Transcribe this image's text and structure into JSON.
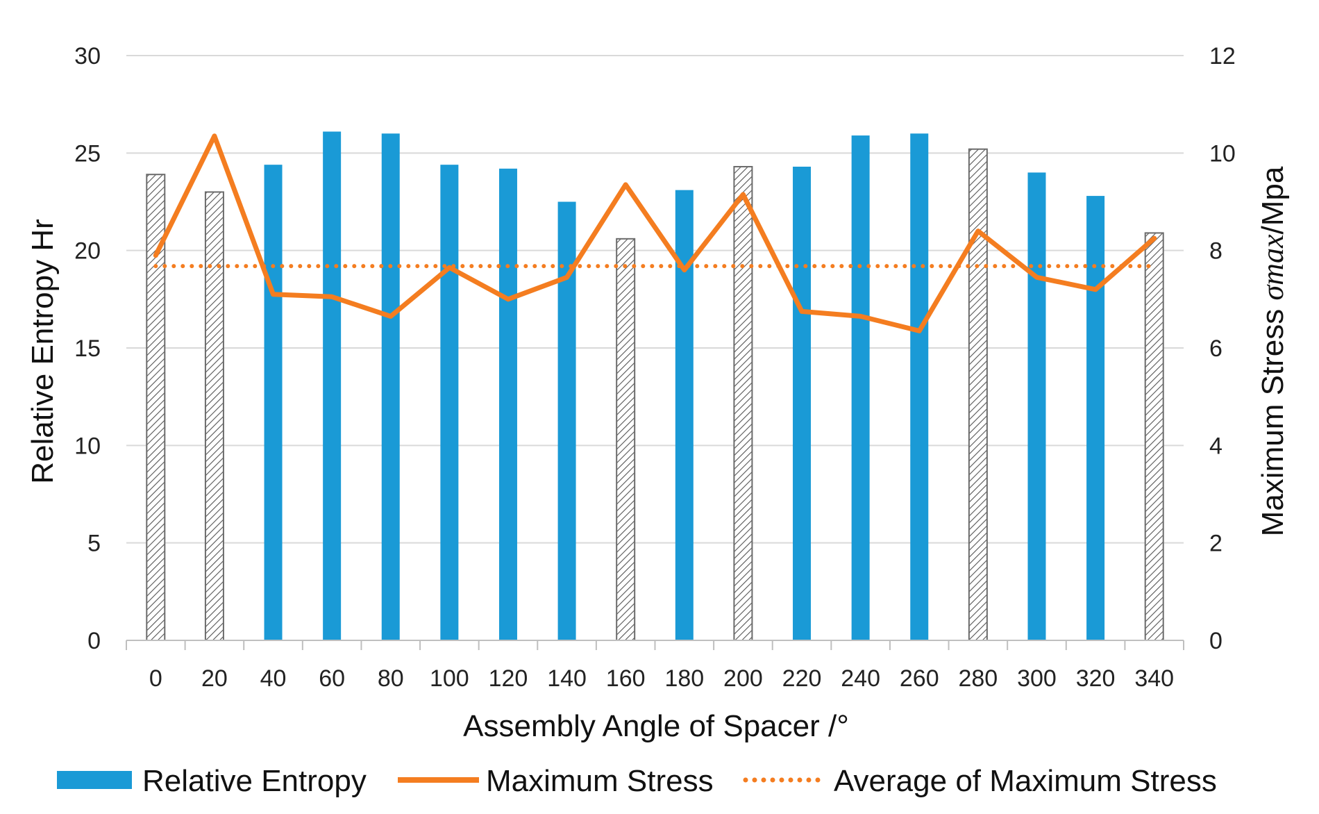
{
  "chart_data": {
    "type": "bar",
    "title": "",
    "xlabel": "Assembly Angle of Spacer /°",
    "ylabel": "Relative Entropy Hr",
    "y2label": {
      "prefix": "Maximum Stress ",
      "math": "σmax",
      "suffix": "/Mpa"
    },
    "categories": [
      "0",
      "20",
      "40",
      "60",
      "80",
      "100",
      "120",
      "140",
      "160",
      "180",
      "200",
      "220",
      "240",
      "260",
      "280",
      "300",
      "320",
      "340"
    ],
    "ylim": [
      0,
      30
    ],
    "yticks": [
      0,
      5,
      10,
      15,
      20,
      25,
      30
    ],
    "y2lim": [
      0,
      12
    ],
    "y2ticks": [
      0,
      2,
      4,
      6,
      8,
      10,
      12
    ],
    "grid": true,
    "legend_position": "bottom",
    "series": [
      {
        "name": "Relative Entropy",
        "kind": "bar",
        "axis": "left",
        "color": "#1a9ad6",
        "values": [
          23.9,
          23.0,
          24.4,
          26.1,
          26.0,
          24.4,
          24.2,
          22.5,
          20.6,
          23.1,
          24.3,
          24.3,
          25.9,
          26.0,
          25.2,
          24.0,
          22.8,
          20.9
        ],
        "hatched": [
          true,
          true,
          false,
          false,
          false,
          false,
          false,
          false,
          true,
          false,
          true,
          false,
          false,
          false,
          true,
          false,
          false,
          true
        ]
      },
      {
        "name": "Maximum Stress",
        "kind": "line",
        "axis": "right",
        "color": "#f47d20",
        "values": [
          7.9,
          10.35,
          7.1,
          7.05,
          6.65,
          7.65,
          7.0,
          7.45,
          9.35,
          7.6,
          9.15,
          6.75,
          6.65,
          6.35,
          8.4,
          7.45,
          7.2,
          8.25
        ]
      },
      {
        "name": "Average of Maximum Stress",
        "kind": "dotted-line",
        "axis": "right",
        "color": "#f47d20",
        "value": 7.68
      }
    ],
    "hatch_color": "#555555"
  }
}
